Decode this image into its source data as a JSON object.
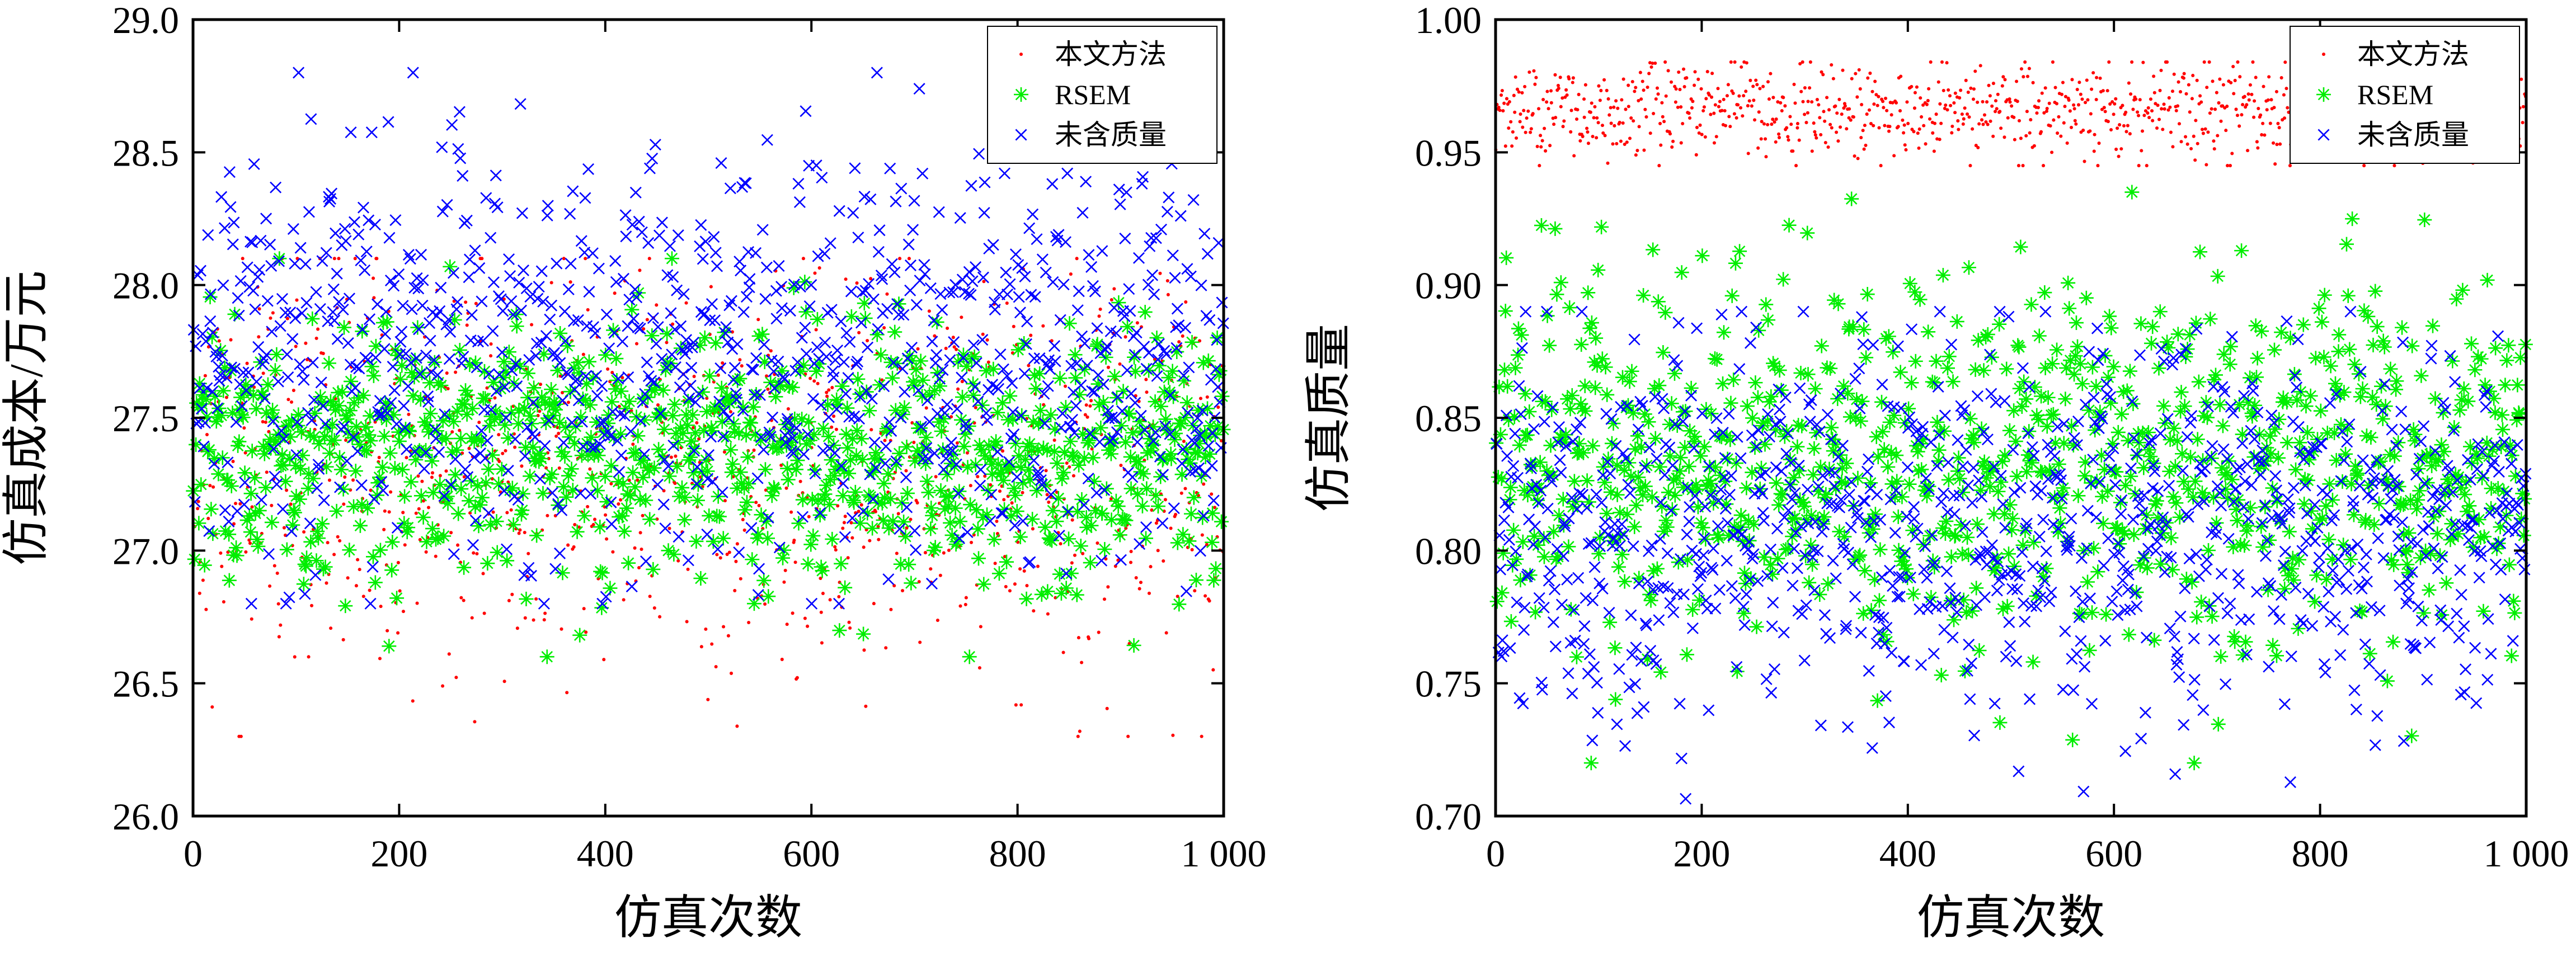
{
  "colors": {
    "method": "#ff0000",
    "rsem": "#00ee00",
    "no_quality": "#0000ff",
    "axis": "#000000",
    "background": "#ffffff"
  },
  "chart_data": [
    {
      "type": "scatter",
      "xlabel": "仿真次数",
      "ylabel": "仿真成本/万元",
      "xlim": [
        0,
        1000
      ],
      "ylim": [
        26.0,
        29.0
      ],
      "x_ticks": [
        "0",
        "200",
        "400",
        "600",
        "800",
        "1 000"
      ],
      "y_ticks": [
        "26.0",
        "26.5",
        "27.0",
        "27.5",
        "28.0",
        "28.5",
        "29.0"
      ],
      "grid": false,
      "legend_position": "top-right",
      "point_count_per_series": 1000,
      "series": [
        {
          "name": "本文方法",
          "marker": "dot",
          "color": "#ff0000",
          "center": 27.3,
          "spread": 0.38,
          "min": 26.3,
          "max": 28.1
        },
        {
          "name": "RSEM",
          "marker": "asterisk",
          "color": "#00ee00",
          "center": 27.38,
          "spread": 0.25,
          "min": 26.6,
          "max": 28.1
        },
        {
          "name": "未含质量",
          "marker": "cross",
          "color": "#0000ff",
          "center": 27.75,
          "spread": 0.4,
          "min": 26.8,
          "max": 28.8
        }
      ]
    },
    {
      "type": "scatter",
      "xlabel": "仿真次数",
      "ylabel": "仿真质量",
      "xlim": [
        0,
        1000
      ],
      "ylim": [
        0.7,
        1.0
      ],
      "x_ticks": [
        "0",
        "200",
        "400",
        "600",
        "800",
        "1 000"
      ],
      "y_ticks": [
        "0.70",
        "0.75",
        "0.80",
        "0.85",
        "0.90",
        "0.95",
        "1.00"
      ],
      "grid": false,
      "legend_position": "top-right",
      "point_count_per_series": 1000,
      "series": [
        {
          "name": "本文方法",
          "marker": "dot",
          "color": "#ff0000",
          "center": 0.965,
          "spread": 0.009,
          "min": 0.945,
          "max": 0.984
        },
        {
          "name": "RSEM",
          "marker": "asterisk",
          "color": "#00ee00",
          "center": 0.835,
          "spread": 0.035,
          "min": 0.72,
          "max": 0.935
        },
        {
          "name": "未含质量",
          "marker": "cross",
          "color": "#0000ff",
          "center": 0.81,
          "spread": 0.035,
          "min": 0.705,
          "max": 0.89
        }
      ]
    }
  ]
}
